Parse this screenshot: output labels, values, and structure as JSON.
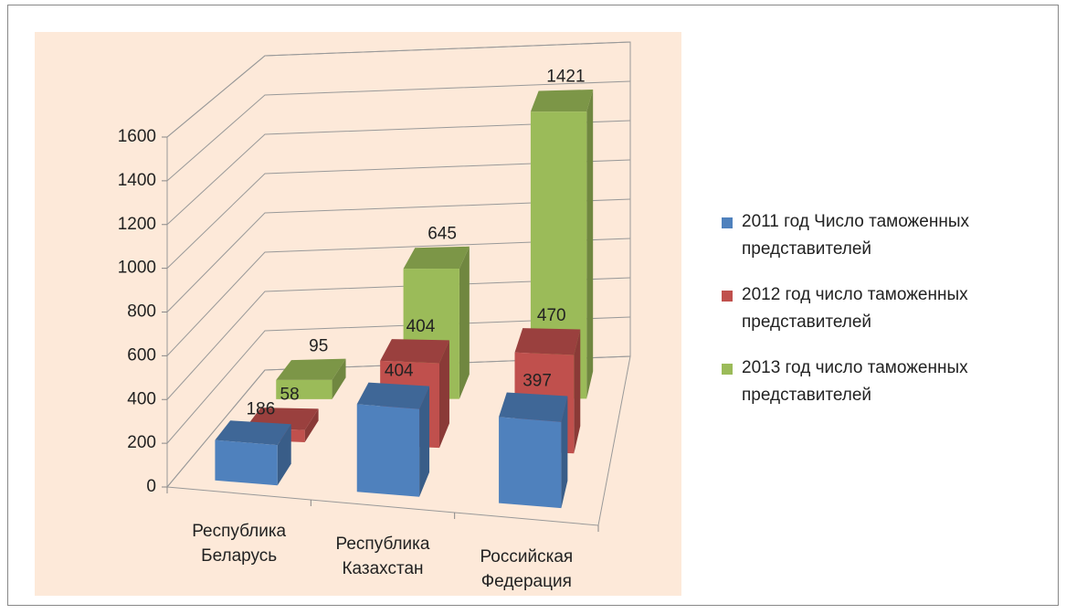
{
  "chart_data": {
    "type": "bar3d",
    "categories": [
      "Республика Беларусь",
      "Республика Казахстан",
      "Российская Федерация"
    ],
    "series": [
      {
        "name": "2011 год Число таможенных представителей",
        "color": "#4f81bd",
        "values": [
          186,
          404,
          397
        ]
      },
      {
        "name": "2012 год число таможенных представителей",
        "color": "#c0504d",
        "values": [
          58,
          404,
          470
        ]
      },
      {
        "name": "2013 год число таможенных представителей",
        "color": "#9bbb59",
        "values": [
          95,
          645,
          1421
        ]
      }
    ],
    "ylim": [
      0,
      1600
    ],
    "yticks": [
      0,
      200,
      400,
      600,
      800,
      1000,
      1200,
      1400,
      1600
    ],
    "grid": true,
    "legend": "right"
  }
}
